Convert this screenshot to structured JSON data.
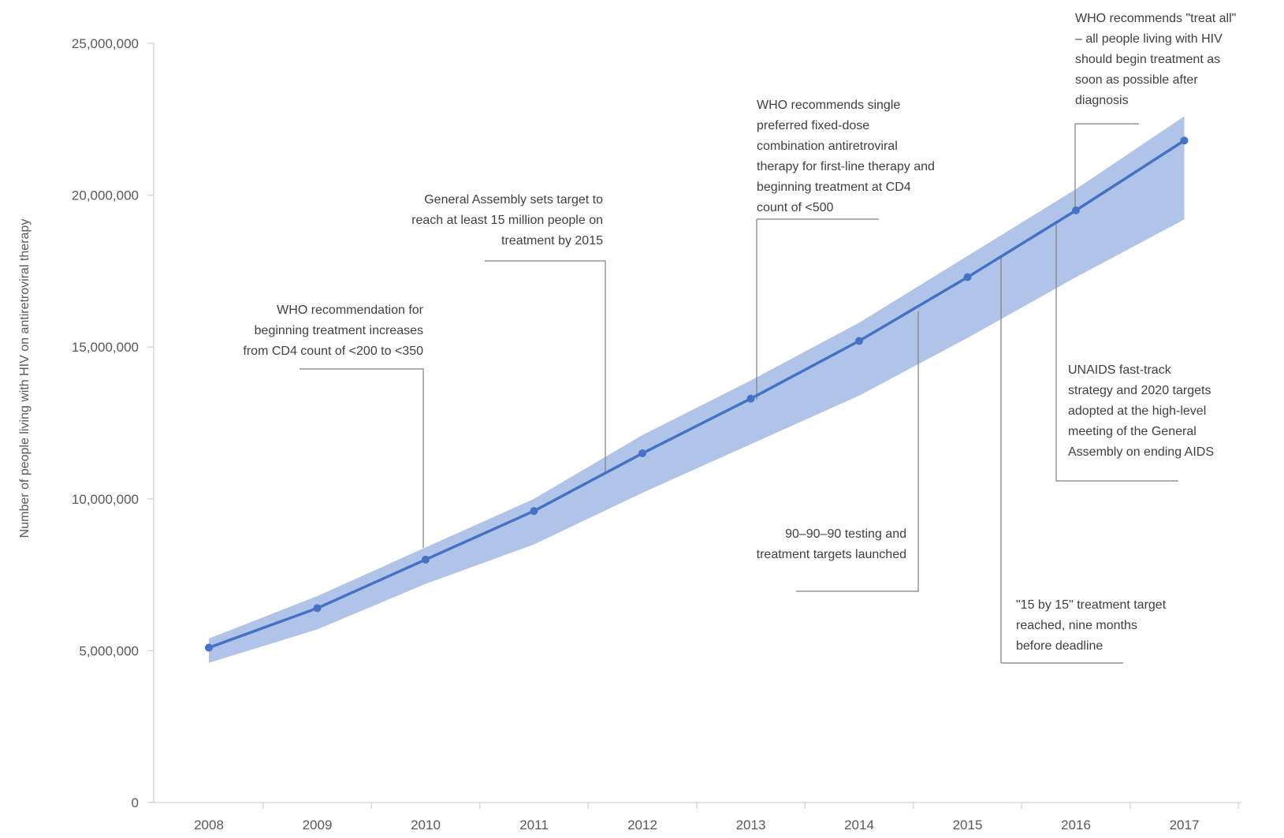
{
  "chart_data": {
    "type": "line",
    "title": "",
    "xlabel": "",
    "ylabel": "Number of people living with HIV on antiretroviral therapy",
    "x": [
      "2008",
      "2009",
      "2010",
      "2011",
      "2012",
      "2013",
      "2014",
      "2015",
      "2016",
      "2017"
    ],
    "series": [
      {
        "values": [
          5100000,
          6400000,
          8000000,
          9600000,
          11500000,
          13300000,
          15200000,
          17300000,
          19500000,
          21800000
        ],
        "lower": [
          4600000,
          5700000,
          7200000,
          8500000,
          10200000,
          11800000,
          13400000,
          15300000,
          17300000,
          19200000
        ],
        "upper": [
          5400000,
          6800000,
          8400000,
          10000000,
          12100000,
          13900000,
          15800000,
          18000000,
          20200000,
          22600000
        ]
      }
    ],
    "ylim": [
      0,
      25000000
    ],
    "y_ticks": [
      "0",
      "5,000,000",
      "10,000,000",
      "15,000,000",
      "20,000,000",
      "25,000,000"
    ],
    "grid": false,
    "colors": {
      "line": "#4472c4",
      "band": "#a7bde6",
      "axis": "#d9d9d9",
      "leader": "#7f7f7f"
    },
    "annotations": [
      {
        "lines": [
          "WHO recommendation for",
          "beginning treatment increases",
          "from CD4 count of <200 to <350"
        ],
        "anchor": "end"
      },
      {
        "lines": [
          "General Assembly sets target to",
          "reach at least 15 million people on",
          "treatment by 2015"
        ],
        "anchor": "end"
      },
      {
        "lines": [
          "WHO recommends single",
          "preferred fixed-dose",
          "combination antiretroviral",
          "therapy for first-line therapy and",
          "beginning treatment at CD4",
          "count of <500"
        ],
        "anchor": "start"
      },
      {
        "lines": [
          "90–90–90 testing and",
          "treatment targets launched"
        ],
        "anchor": "end"
      },
      {
        "lines": [
          "\"15 by 15\" treatment target",
          "reached, nine months",
          "before deadline"
        ],
        "anchor": "start"
      },
      {
        "lines": [
          "UNAIDS fast-track",
          "strategy and 2020 targets",
          "adopted at the high-level",
          "meeting of the General",
          "Assembly on ending AIDS"
        ],
        "anchor": "start"
      },
      {
        "lines": [
          "WHO recommends \"treat all\"",
          "– all people living with HIV",
          "should begin treatment as",
          "soon as possible after",
          "diagnosis"
        ],
        "anchor": "start"
      }
    ]
  }
}
